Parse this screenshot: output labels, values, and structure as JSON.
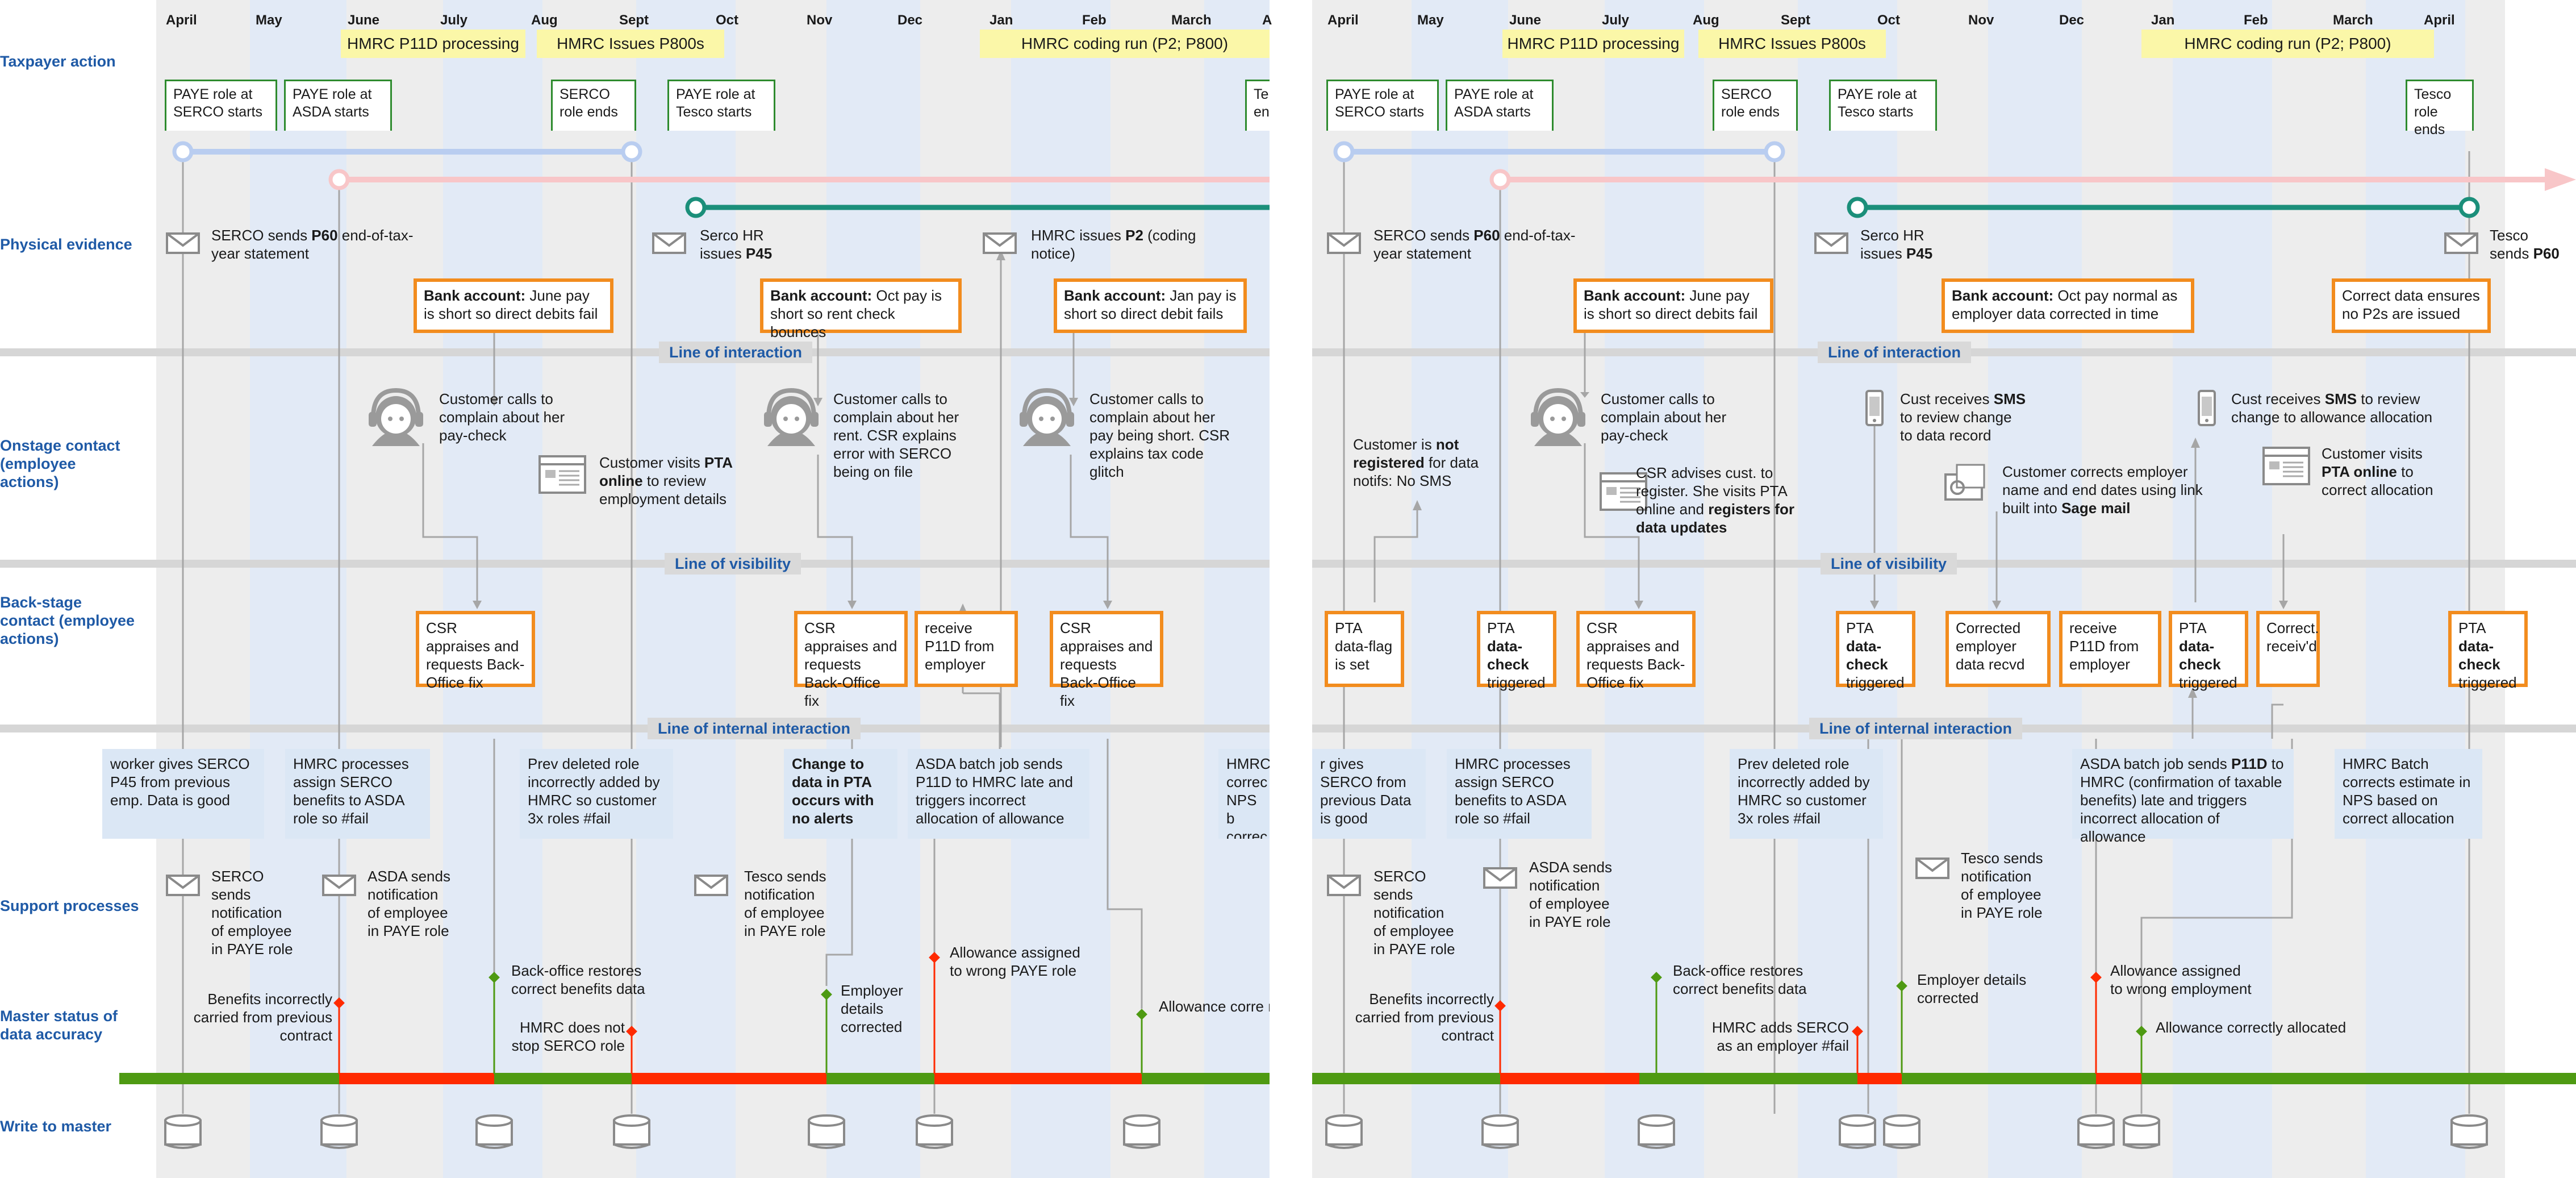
{
  "row_labels": [
    {
      "key": "taxpayer",
      "text": "Taxpayer action"
    },
    {
      "key": "physical",
      "text": "Physical evidence"
    },
    {
      "key": "onstage",
      "text": "Onstage contact (employee actions)"
    },
    {
      "key": "backstage",
      "text": "Back-stage contact (employee actions)"
    },
    {
      "key": "support",
      "text": "Support processes"
    },
    {
      "key": "master",
      "text": "Master status of data accuracy"
    },
    {
      "key": "write",
      "text": "Write to master"
    }
  ],
  "bands": {
    "interaction": "Line of interaction",
    "visibility": "Line of visibility",
    "internal": "Line of internal interaction"
  },
  "left": {
    "months": [
      "April",
      "May",
      "June",
      "July",
      "Aug",
      "Sept",
      "Oct",
      "Nov",
      "Dec",
      "Jan",
      "Feb",
      "March",
      "A"
    ],
    "yellow": [
      {
        "text": "HMRC P11D processing"
      },
      {
        "text": "HMRC Issues P800s"
      },
      {
        "text": "HMRC coding run (P2; P800)"
      }
    ],
    "taxpayer": [
      "PAYE role at SERCO starts",
      "PAYE role at ASDA starts",
      "SERCO role ends",
      "PAYE role at Tesco starts",
      "Te en"
    ],
    "physical": [
      {
        "pre": "SERCO sends ",
        "bold": "P60",
        "post": " end-of-tax-year statement"
      },
      {
        "pre": "Serco HR issues ",
        "bold": "P45",
        "post": ""
      },
      {
        "pre": "HMRC issues ",
        "bold": "P2",
        "post": " (coding notice)"
      }
    ],
    "bank": [
      {
        "bold": "Bank account:",
        "text": " June pay is short so direct debits fail"
      },
      {
        "bold": "Bank account:",
        "text": " Oct pay is short so rent check bounces"
      },
      {
        "bold": "Bank account:",
        "text": " Jan pay is short so direct debit fails"
      }
    ],
    "onstage": [
      "Customer calls to complain about her pay-check",
      "Customer calls to complain about her rent. CSR explains error with SERCO being on file",
      "Customer calls to complain about her pay being short. CSR explains tax code glitch"
    ],
    "pta_visit": {
      "pre": "Customer visits ",
      "bold": "PTA online",
      "post": " to review employment details"
    },
    "backstage": [
      "CSR appraises and requests Back-Office fix",
      "CSR appraises and requests Back-Office fix",
      "receive P11D from employer",
      "CSR appraises and requests Back-Office fix"
    ],
    "internal": [
      "worker gives SERCO P45 from previous emp. Data is good",
      "HMRC processes assign SERCO benefits to ASDA role so #fail",
      "Prev deleted role incorrectly added by HMRC so customer 3x roles #fail",
      "Change to data in PTA occurs with no alerts",
      "ASDA batch job sends P11D to HMRC late and triggers incorrect allocation of allowance",
      "HMRC correc NPS b correc"
    ],
    "support": [
      "SERCO sends notification of employee in PAYE role",
      "ASDA sends notification of employee in PAYE role",
      "Tesco sends notification of employee in PAYE role"
    ],
    "master": [
      "Benefits incorrectly carried from previous contract",
      "Back-office restores correct benefits data",
      "HMRC does not stop SERCO role",
      "Employer details corrected",
      "Allowance assigned to wrong PAYE role",
      "Allowance corre re-allocated"
    ]
  },
  "right": {
    "months": [
      "April",
      "May",
      "June",
      "July",
      "Aug",
      "Sept",
      "Oct",
      "Nov",
      "Dec",
      "Jan",
      "Feb",
      "March",
      "April"
    ],
    "yellow": [
      {
        "text": "HMRC P11D processing"
      },
      {
        "text": "HMRC Issues P800s"
      },
      {
        "text": "HMRC coding run (P2; P800)"
      }
    ],
    "taxpayer": [
      "PAYE role at SERCO starts",
      "PAYE role at ASDA starts",
      "SERCO role ends",
      "PAYE role at Tesco starts",
      "Tesco role ends"
    ],
    "physical": [
      {
        "pre": "SERCO sends ",
        "bold": "P60",
        "post": " end-of-tax-year statement"
      },
      {
        "pre": "Serco HR issues ",
        "bold": "P45",
        "post": ""
      },
      {
        "pre": "Tesco sends ",
        "bold": "P60",
        "post": ""
      }
    ],
    "bank": [
      {
        "bold": "Bank account:",
        "text": " June pay is short so direct debits fail"
      },
      {
        "bold": "Bank account:",
        "text": " Oct pay normal as employer data corrected in time"
      },
      {
        "bold": "",
        "text": "Correct data ensures no P2s are issued"
      }
    ],
    "onstage": [
      "Customer calls to complain about her pay-check"
    ],
    "not_registered": {
      "pre": "Customer is ",
      "bold": "not registered",
      "post": " for data notifs: No SMS"
    },
    "csr_advises": {
      "pre": "CSR advises cust. to register. She visits PTA online and ",
      "bold": "registers for data updates",
      "post": ""
    },
    "sms1": {
      "pre": "Cust receives ",
      "bold": "SMS",
      "post": " to review change to data record"
    },
    "sms2": {
      "pre": "Cust receives ",
      "bold": "SMS",
      "post": " to review change to allowance allocation"
    },
    "corrects": {
      "pre": "Customer corrects employer name and end dates using link built into ",
      "bold": "Sage mail",
      "post": ""
    },
    "pta_visit": {
      "pre": "Customer visits ",
      "bold": "PTA online",
      "post": " to correct allocation"
    },
    "backstage": [
      {
        "pre": "PTA data-flag is set",
        "bold": "",
        "post": ""
      },
      {
        "pre": "PTA ",
        "bold": "data-check",
        "post": " triggered"
      },
      {
        "pre": "CSR appraises and requests Back-Office fix",
        "bold": "",
        "post": ""
      },
      {
        "pre": "PTA ",
        "bold": "data-check",
        "post": " triggered"
      },
      {
        "pre": "Corrected employer data recvd",
        "bold": "",
        "post": ""
      },
      {
        "pre": "receive P11D from employer",
        "bold": "",
        "post": ""
      },
      {
        "pre": "PTA ",
        "bold": "data-check",
        "post": " triggered"
      },
      {
        "pre": "Correct. receiv'd",
        "bold": "",
        "post": ""
      },
      {
        "pre": "PTA ",
        "bold": "data-check",
        "post": " triggered"
      }
    ],
    "internal": [
      {
        "pre": "r gives SERCO from previous Data is good",
        "bold": "",
        "post": ""
      },
      {
        "pre": "HMRC processes assign SERCO benefits to ASDA role so #fail",
        "bold": "",
        "post": ""
      },
      {
        "pre": "Prev deleted role incorrectly added by HMRC so customer 3x roles #fail",
        "bold": "",
        "post": ""
      },
      {
        "pre": "ASDA batch job sends ",
        "bold": "P11D",
        "post": " to HMRC (confirmation of taxable benefits) late and triggers incorrect allocation of allowance"
      },
      {
        "pre": "HMRC Batch corrects estimate in NPS based on correct allocation",
        "bold": "",
        "post": ""
      }
    ],
    "support": [
      "SERCO sends notification of employee in PAYE role",
      "ASDA sends notification of employee in PAYE role",
      "Tesco sends notification of employee in PAYE role"
    ],
    "master": [
      "Benefits incorrectly carried from previous contract",
      "Back-office restores correct benefits data",
      "HMRC adds SERCO as an employer #fail",
      "Employer details corrected",
      "Allowance assigned to wrong employment",
      "Allowance correctly allocated"
    ]
  },
  "colors": {
    "blue_line": "#b9cdf0",
    "pink_line": "#f8c6c8",
    "teal_line": "#1b8f7a",
    "orange": "#f28c1e",
    "green_border": "#2e8b2e",
    "status_green": "#4e9a12",
    "status_red": "#ff2a00",
    "label_blue": "#1f5aa6"
  }
}
